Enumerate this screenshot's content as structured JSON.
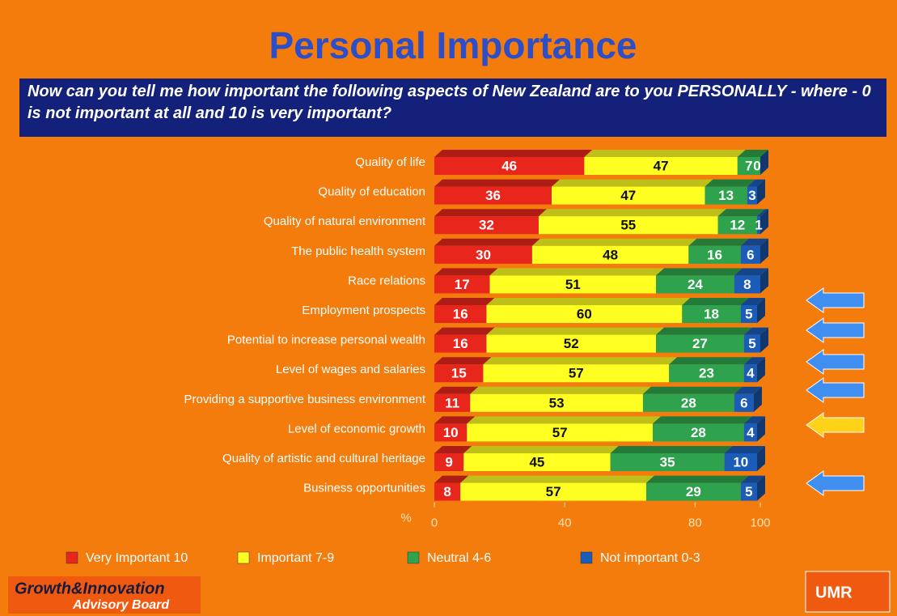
{
  "chart_data": {
    "type": "stacked_barh",
    "title": "Personal Importance",
    "subtitle": "Now can you tell me how important the following aspects of New Zealand are to you PERSONALLY - where - 0 is not important at all and 10 is very important?",
    "categories": [
      "Quality of life",
      "Quality of education",
      "Quality of natural environment",
      "The public health system",
      "Race relations",
      "Employment prospects",
      "Potential to increase personal wealth",
      "Level of wages and salaries",
      "Providing a supportive business environment",
      "Level of economic growth",
      "Quality of artistic and cultural heritage",
      "Business opportunities"
    ],
    "series": [
      {
        "name": "Very Important 10",
        "color": "#e8261c",
        "values": [
          46,
          36,
          32,
          30,
          17,
          16,
          16,
          15,
          11,
          10,
          9,
          8
        ]
      },
      {
        "name": "Important 7-9",
        "color": "#ffff22",
        "values": [
          47,
          47,
          55,
          48,
          51,
          60,
          52,
          57,
          53,
          57,
          45,
          57
        ]
      },
      {
        "name": "Neutral 4-6",
        "color": "#2ea24c",
        "values": [
          7,
          13,
          12,
          16,
          24,
          18,
          27,
          23,
          28,
          28,
          35,
          29
        ]
      },
      {
        "name": "Not important 0-3",
        "color": "#1a5cb8",
        "values": [
          0,
          3,
          1,
          6,
          8,
          5,
          5,
          4,
          6,
          4,
          10,
          5
        ]
      }
    ],
    "xlabel": "%",
    "xlim": [
      0,
      100
    ],
    "xticks": [
      0,
      40,
      80,
      100
    ]
  },
  "footer": {
    "left_logo": [
      "Growth&Innovation",
      "Advisory Board"
    ],
    "right_logo": "UMR"
  }
}
